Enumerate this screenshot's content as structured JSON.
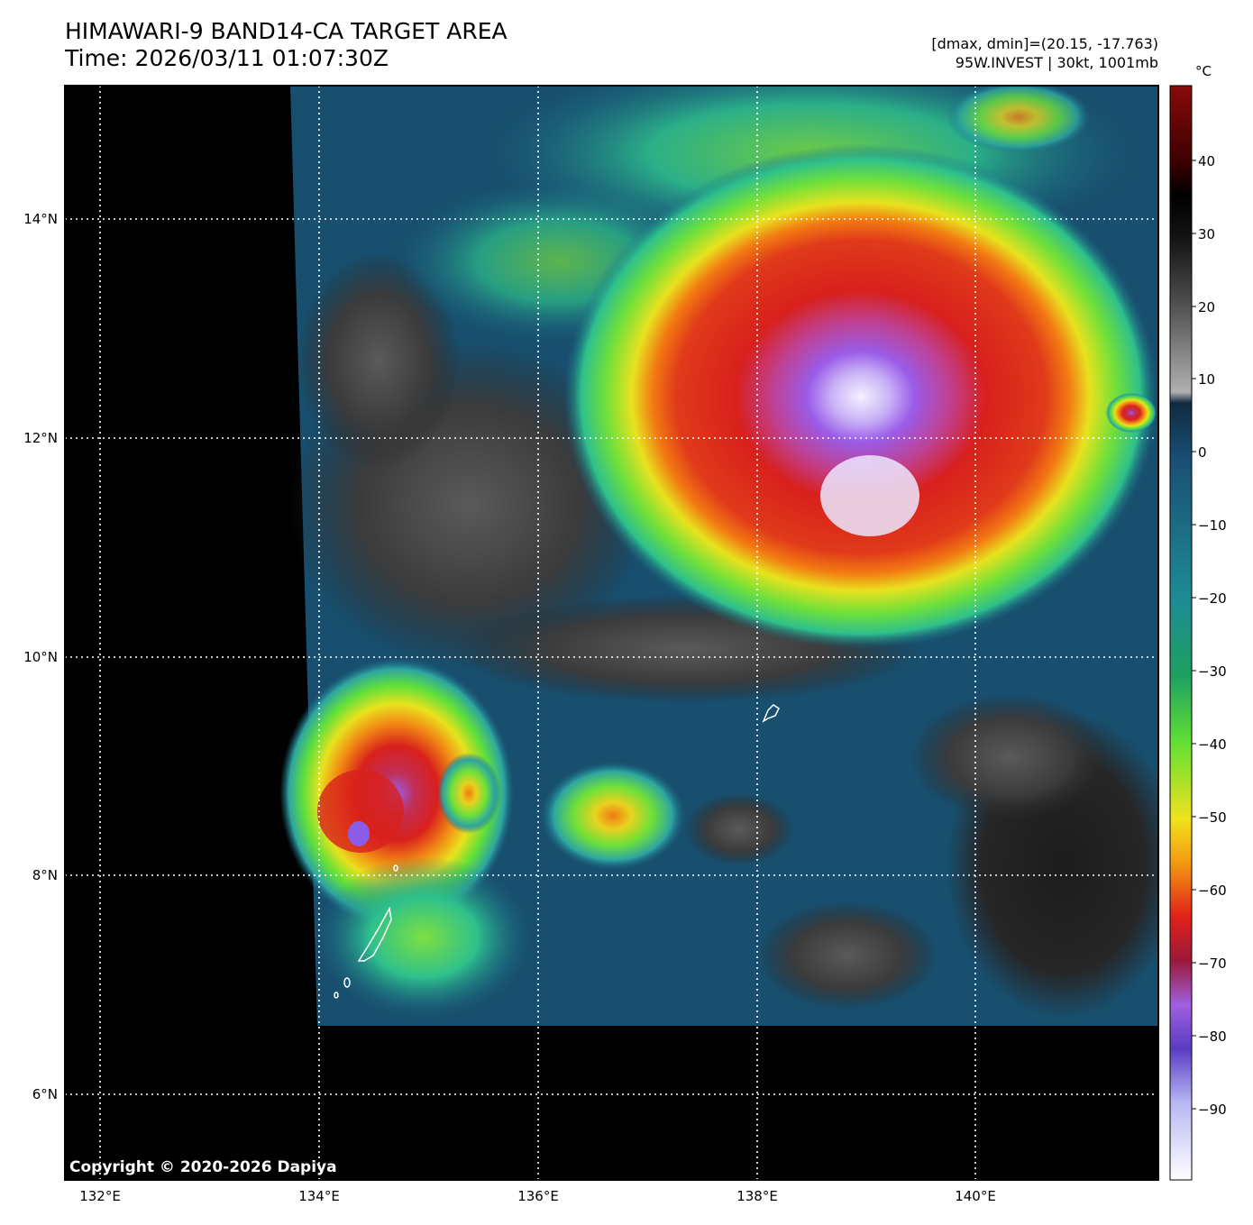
{
  "header": {
    "title_line1": "HIMAWARI-9 BAND14-CA TARGET AREA",
    "title_line2": "Time: 2026/03/11 01:07:30Z",
    "range_text": "[dmax, dmin]=(20.15, -17.763)",
    "storm_text": "95W.INVEST | 30kt, 1001mb"
  },
  "map": {
    "longitude_labels": [
      "132°E",
      "134°E",
      "136°E",
      "138°E",
      "140°E"
    ],
    "latitude_labels": [
      "14°N",
      "12°N",
      "10°N",
      "8°N",
      "6°N"
    ],
    "copyright": "Copyright © 2020-2026 Dapiya",
    "colors": {
      "no_data": "#000000",
      "warm_ocean": "#164e6e",
      "mid_cloud": "#2ea6a0",
      "cold_green": "#5fe03a",
      "yellow": "#e8e21e",
      "orange": "#f07a12",
      "red": "#d8201c",
      "purple": "#9a5ce8",
      "coldest": "#f4f4ff"
    }
  },
  "colorbar": {
    "unit": "°C",
    "tick_labels": [
      "40",
      "30",
      "20",
      "10",
      "0",
      "−10",
      "−20",
      "−30",
      "−40",
      "−50",
      "−60",
      "−70",
      "−80",
      "−90"
    ]
  }
}
